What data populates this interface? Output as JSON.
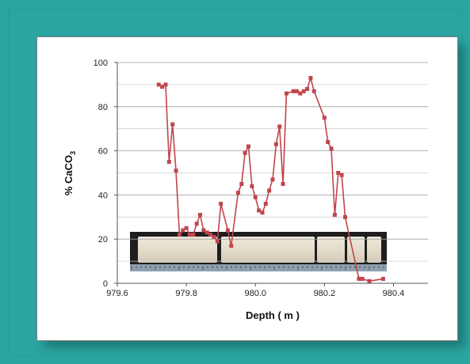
{
  "colors": {
    "background": "#2ba5a1",
    "card": "#ffffff",
    "series": "#c0464c",
    "gridline": "#bdbdbd"
  },
  "chart_data": {
    "type": "line",
    "xlabel": "Depth ( m )",
    "ylabel": "% CaCO3",
    "xlim": [
      979.6,
      980.5
    ],
    "ylim": [
      0,
      100
    ],
    "x_ticks": [
      "979.6",
      "979.8",
      "980.0",
      "980.2",
      "980.4"
    ],
    "y_ticks": [
      "0",
      "20",
      "40",
      "60",
      "80",
      "100"
    ],
    "grid": "horizontal",
    "series": [
      {
        "x": [
          979.72,
          979.73,
          979.74,
          979.75,
          979.76,
          979.77,
          979.78,
          979.79,
          979.8,
          979.81,
          979.82,
          979.83,
          979.84,
          979.85,
          979.86,
          979.87,
          979.88,
          979.89,
          979.9,
          979.92,
          979.93,
          979.95,
          979.96,
          979.97,
          979.98,
          979.99,
          980.0,
          980.01,
          980.02,
          980.03,
          980.04,
          980.05,
          980.06,
          980.07,
          980.08,
          980.09,
          980.11,
          980.12,
          980.13,
          980.14,
          980.15,
          980.16,
          980.17,
          980.2,
          980.21,
          980.22,
          980.23,
          980.24,
          980.25,
          980.26,
          980.3,
          980.31,
          980.33,
          980.37
        ],
        "y": [
          90,
          89,
          90,
          55,
          72,
          51,
          22,
          24,
          25,
          22,
          22,
          27,
          31,
          24,
          23,
          22,
          21,
          19,
          36,
          24,
          17,
          41,
          45,
          59,
          62,
          44,
          39,
          33,
          32,
          36,
          42,
          47,
          63,
          71,
          45,
          86,
          87,
          87,
          86,
          87,
          88,
          93,
          87,
          75,
          64,
          61,
          31,
          50,
          49,
          30,
          2,
          2,
          1,
          2
        ]
      }
    ]
  }
}
